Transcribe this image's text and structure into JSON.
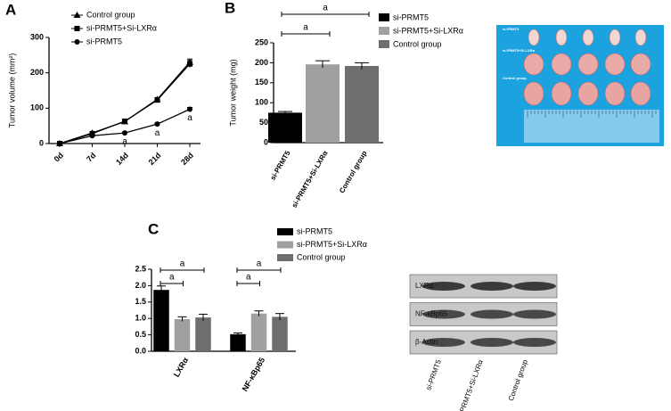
{
  "panel_labels": [
    "A",
    "B",
    "C"
  ],
  "chart_data": [
    {
      "type": "line",
      "ylabel": "Tumor volume (mm²)",
      "categories": [
        "0d",
        "7d",
        "14d",
        "21d",
        "28d"
      ],
      "ylim": [
        0,
        300
      ],
      "yticks": [
        0,
        100,
        200,
        300
      ],
      "series": [
        {
          "name": "Control group",
          "color": "#000000",
          "marker": "triangle",
          "values": [
            0,
            30,
            62,
            125,
            230
          ],
          "errors": [
            0,
            3,
            4,
            5,
            9
          ]
        },
        {
          "name": "si-PRMT5+Si-LXRα",
          "color": "#000000",
          "marker": "square",
          "values": [
            0,
            28,
            63,
            123,
            225
          ],
          "errors": [
            0,
            3,
            4,
            5,
            10
          ]
        },
        {
          "name": "si-PRMT5",
          "color": "#000000",
          "marker": "circle",
          "values": [
            0,
            22,
            30,
            55,
            97
          ],
          "errors": [
            0,
            2,
            3,
            4,
            5
          ]
        }
      ],
      "annotations": [
        {
          "text": "a",
          "x": "14d"
        },
        {
          "text": "a",
          "x": "21d"
        },
        {
          "text": "a",
          "x": "28d"
        }
      ]
    },
    {
      "type": "bar",
      "ylabel": "Tumor weight (mg)",
      "categories": [
        "si-PRMT5",
        "si-PRMT5+Si-LXRα",
        "Control group"
      ],
      "values": [
        75,
        196,
        192
      ],
      "errors": [
        3,
        9,
        8
      ],
      "colors": [
        "#000000",
        "#a0a0a0",
        "#6e6e6e"
      ],
      "ylim": [
        0,
        250
      ],
      "yticks": [
        0,
        50,
        100,
        150,
        200,
        250
      ],
      "significance": [
        {
          "from": "si-PRMT5",
          "to": "si-PRMT5+Si-LXRα",
          "label": "a"
        },
        {
          "from": "si-PRMT5",
          "to": "Control group",
          "label": "a"
        }
      ]
    },
    {
      "type": "grouped-bar",
      "categories": [
        "LXRα",
        "NF-κBp65"
      ],
      "ylim": [
        0,
        2.5
      ],
      "yticks": [
        {
          "value": 0,
          "label": "0.0"
        },
        0.5,
        {
          "value": 1,
          "label": "1.0"
        },
        1.5,
        {
          "value": 2,
          "label": "2.0"
        },
        2.5
      ],
      "series": [
        {
          "name": "si-PRMT5",
          "color": "#000000",
          "values": [
            1.87,
            0.52
          ],
          "errors": [
            0.12,
            0.04
          ]
        },
        {
          "name": "si-PRMT5+Si-LXRα",
          "color": "#a0a0a0",
          "values": [
            0.98,
            1.15
          ],
          "errors": [
            0.07,
            0.08
          ]
        },
        {
          "name": "Control group",
          "color": "#6e6e6e",
          "values": [
            1.03,
            1.05
          ],
          "errors": [
            0.1,
            0.1
          ]
        }
      ],
      "significance": [
        {
          "group": "LXRα",
          "from": "si-PRMT5",
          "to": "si-PRMT5+Si-LXRα",
          "label": "a"
        },
        {
          "group": "LXRα",
          "from": "si-PRMT5",
          "to": "Control group",
          "label": "a"
        },
        {
          "group": "NF-κBp65",
          "from": "si-PRMT5",
          "to": "si-PRMT5+Si-LXRα",
          "label": "a"
        },
        {
          "group": "NF-κBp65",
          "from": "si-PRMT5",
          "to": "Control group",
          "label": "a"
        }
      ]
    }
  ],
  "tumor_photo": {
    "labels": [
      "si-PRMT5",
      "si-PRMT5+Si-LXRα",
      "Control group"
    ]
  },
  "western_blot": {
    "rows": [
      "LXRα",
      "NF-κBp65",
      "β-Actin"
    ],
    "columns": [
      "si-PRMT5",
      "Si-PRMT5+Si-LXRα",
      "Control group"
    ]
  }
}
